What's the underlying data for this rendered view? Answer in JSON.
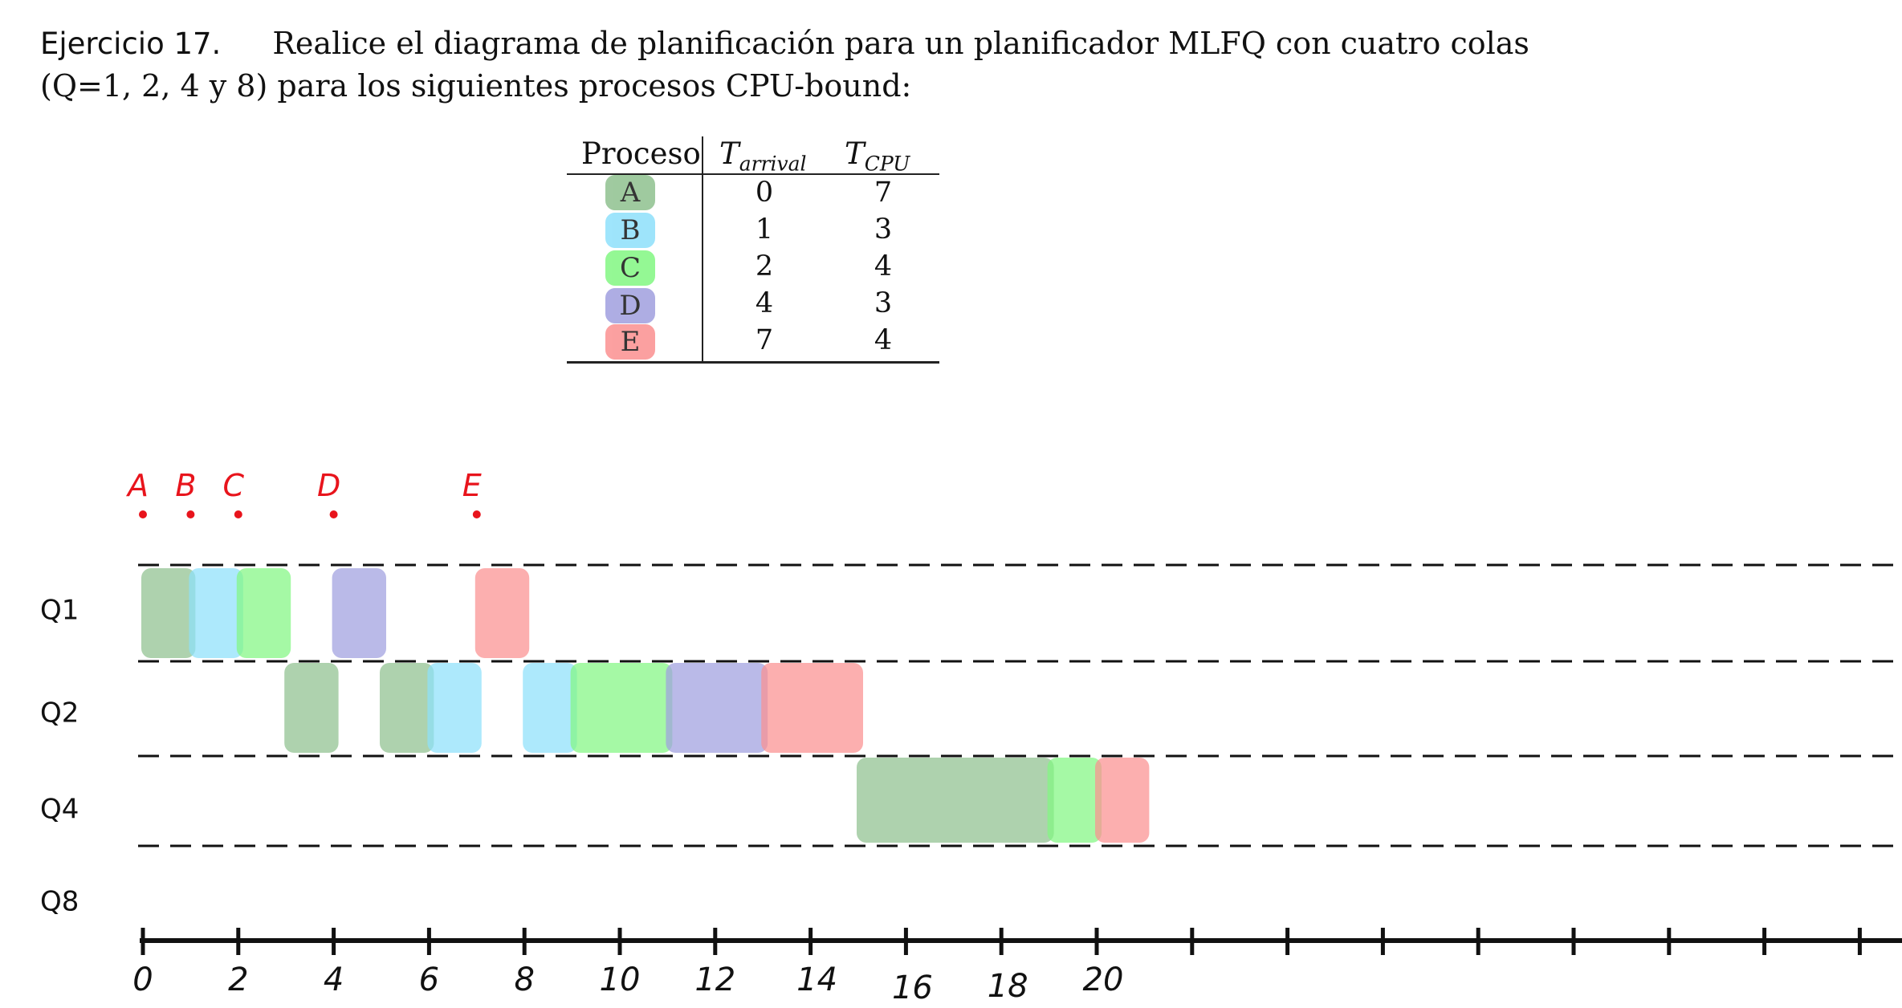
{
  "statement": {
    "number": "Ejercicio 17.",
    "line1": "Realice el diagrama de planificación para un planificador MLFQ con cuatro colas",
    "line2": "(Q=1, 2, 4 y 8) para los siguientes procesos CPU-bound:"
  },
  "table": {
    "headers": {
      "process": "Proceso",
      "arrival_base": "T",
      "arrival_sub": "arrival",
      "cpu_base": "T",
      "cpu_sub": "CPU"
    },
    "rows": [
      {
        "name": "A",
        "arrival": "0",
        "cpu": "7",
        "color": "#8fc18f"
      },
      {
        "name": "B",
        "arrival": "1",
        "cpu": "3",
        "color": "#8ee0fb"
      },
      {
        "name": "C",
        "arrival": "2",
        "cpu": "4",
        "color": "#82f782"
      },
      {
        "name": "D",
        "arrival": "4",
        "cpu": "3",
        "color": "#a09fdf"
      },
      {
        "name": "E",
        "arrival": "7",
        "cpu": "4",
        "color": "#fb9090"
      }
    ]
  },
  "diagram": {
    "arrival_marks": [
      {
        "label": "A",
        "time": 0
      },
      {
        "label": "B",
        "time": 1
      },
      {
        "label": "C",
        "time": 2
      },
      {
        "label": "D",
        "time": 4
      },
      {
        "label": "E",
        "time": 7
      }
    ],
    "queues": [
      "Q1",
      "Q2",
      "Q4",
      "Q8"
    ],
    "axis_ticks": [
      0,
      1,
      2,
      3,
      4,
      5,
      6,
      7,
      8,
      9,
      10,
      11,
      12,
      13,
      14,
      15,
      16,
      17,
      18,
      19,
      20,
      21,
      22,
      23,
      24,
      25,
      26,
      27,
      28,
      29,
      30,
      31,
      32,
      33,
      34,
      35,
      36,
      37
    ],
    "axis_labels": [
      "0",
      "2",
      "4",
      "6",
      "8",
      "10",
      "12",
      "14",
      "16",
      "18",
      "20"
    ],
    "blocks": [
      {
        "process": "A",
        "queue": 0,
        "start": 0,
        "end": 1
      },
      {
        "process": "B",
        "queue": 0,
        "start": 1,
        "end": 2
      },
      {
        "process": "C",
        "queue": 0,
        "start": 2,
        "end": 3
      },
      {
        "process": "A",
        "queue": 1,
        "start": 3,
        "end": 4
      },
      {
        "process": "D",
        "queue": 0,
        "start": 4,
        "end": 5
      },
      {
        "process": "A",
        "queue": 1,
        "start": 5,
        "end": 6
      },
      {
        "process": "B",
        "queue": 1,
        "start": 6,
        "end": 7
      },
      {
        "process": "E",
        "queue": 0,
        "start": 7,
        "end": 8
      },
      {
        "process": "B",
        "queue": 1,
        "start": 8,
        "end": 9
      },
      {
        "process": "C",
        "queue": 1,
        "start": 9,
        "end": 11
      },
      {
        "process": "D",
        "queue": 1,
        "start": 11,
        "end": 13
      },
      {
        "process": "E",
        "queue": 1,
        "start": 13,
        "end": 15
      },
      {
        "process": "A",
        "queue": 2,
        "start": 15,
        "end": 19
      },
      {
        "process": "C",
        "queue": 2,
        "start": 19,
        "end": 20
      },
      {
        "process": "E",
        "queue": 2,
        "start": 20,
        "end": 21
      }
    ]
  },
  "colors": {
    "A": "#8fc18f",
    "B": "#8ee0fb",
    "C": "#82f782",
    "D": "#a09fdf",
    "E": "#fb9090",
    "annotation": "#e8141c"
  }
}
